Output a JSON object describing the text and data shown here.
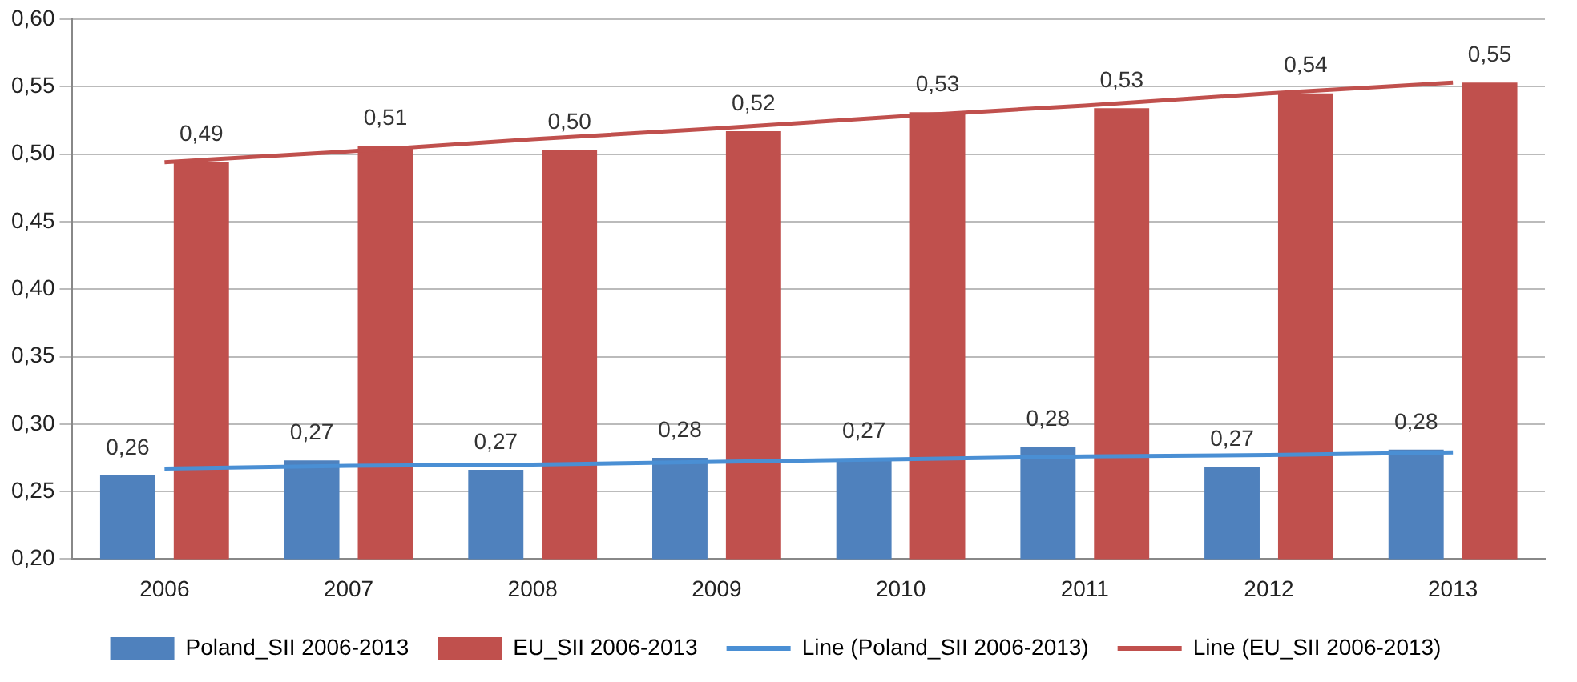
{
  "chart_data": {
    "type": "bar",
    "categories": [
      "2006",
      "2007",
      "2008",
      "2009",
      "2010",
      "2011",
      "2012",
      "2013"
    ],
    "series": [
      {
        "name": "Poland_SII 2006-2013",
        "color": "#4f81bd",
        "values": [
          0.262,
          0.273,
          0.266,
          0.275,
          0.274,
          0.283,
          0.268,
          0.281
        ],
        "value_labels": [
          "0,26",
          "0,27",
          "0,27",
          "0,28",
          "0,27",
          "0,28",
          "0,27",
          "0,28"
        ]
      },
      {
        "name": "EU_SII 2006-2013",
        "color": "#c0504d",
        "values": [
          0.494,
          0.506,
          0.503,
          0.517,
          0.531,
          0.534,
          0.545,
          0.553
        ],
        "value_labels": [
          "0,49",
          "0,51",
          "0,50",
          "0,52",
          "0,53",
          "0,53",
          "0,54",
          "0,55"
        ]
      },
      {
        "name": "Line (Poland_SII 2006-2013)",
        "type": "line",
        "color": "#4a8fd4",
        "values": [
          0.267,
          0.269,
          0.27,
          0.272,
          0.274,
          0.276,
          0.277,
          0.279
        ]
      },
      {
        "name": "Line (EU_SII 2006-2013)",
        "type": "line",
        "color": "#c0504d",
        "values": [
          0.494,
          0.502,
          0.511,
          0.519,
          0.528,
          0.536,
          0.545,
          0.553
        ]
      }
    ],
    "ylim": [
      0.2,
      0.6
    ],
    "yticks": [
      {
        "value": 0.2,
        "label": "0,20"
      },
      {
        "value": 0.25,
        "label": "0,25"
      },
      {
        "value": 0.3,
        "label": "0,30"
      },
      {
        "value": 0.35,
        "label": "0,35"
      },
      {
        "value": 0.4,
        "label": "0,40"
      },
      {
        "value": 0.45,
        "label": "0,45"
      },
      {
        "value": 0.5,
        "label": "0,50"
      },
      {
        "value": 0.55,
        "label": "0,55"
      },
      {
        "value": 0.6,
        "label": "0,60"
      }
    ],
    "grid": "y",
    "legend": "bottom",
    "marker": "none"
  }
}
